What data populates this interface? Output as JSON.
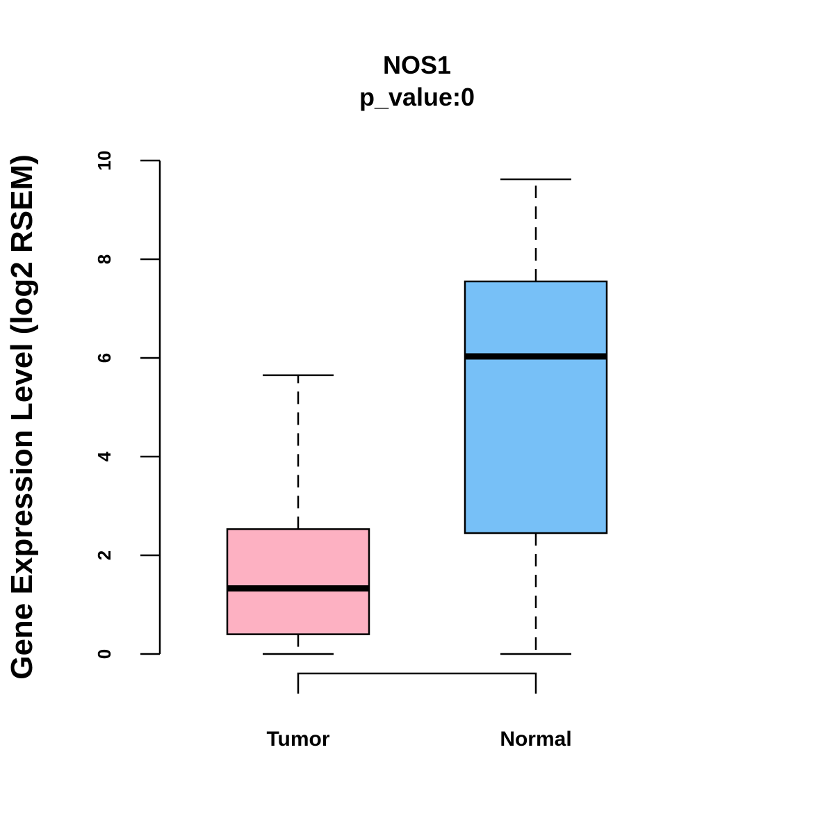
{
  "chart_data": {
    "type": "boxplot",
    "title": "NOS1",
    "subtitle": "p_value:0",
    "xlabel": "",
    "ylabel": "Gene Expression Level (log2 RSEM)",
    "ylim": [
      0,
      10
    ],
    "yticks": [
      "0",
      "2",
      "4",
      "6",
      "8",
      "10"
    ],
    "categories": [
      "Tumor",
      "Normal"
    ],
    "boxes": [
      {
        "name": "Tumor",
        "min": 0,
        "q1": 0.4,
        "median": 1.33,
        "q3": 2.53,
        "max": 5.65,
        "color": "#FDB1C2"
      },
      {
        "name": "Normal",
        "min": 0,
        "q1": 2.45,
        "median": 6.03,
        "q3": 7.55,
        "max": 9.62,
        "color": "#77C0F7"
      }
    ],
    "comparison_bracket": [
      "Tumor",
      "Normal"
    ]
  }
}
